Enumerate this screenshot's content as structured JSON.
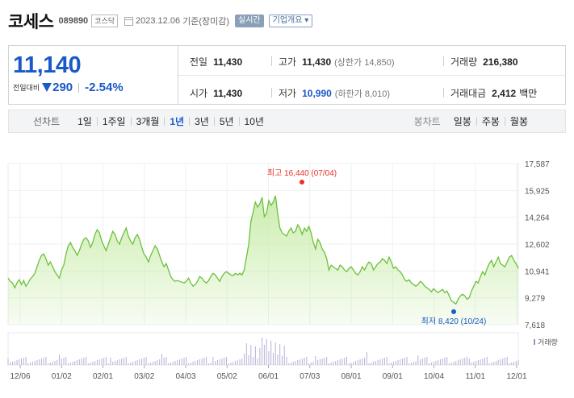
{
  "header": {
    "name": "코세스",
    "code": "089890",
    "market": "코스닥",
    "date": "2023.12.06",
    "basis": "기준(장미감)",
    "live_label": "실시간",
    "profile_label": "기업개요 ▾"
  },
  "price": {
    "current": "11,140",
    "change_label": "전일대비",
    "change": "290",
    "change_pct": "-2.54%",
    "direction": "down"
  },
  "stats": {
    "prev_close_label": "전일",
    "prev_close": "11,430",
    "high_label": "고가",
    "high": "11,430",
    "upper_limit": "(상한가 14,850)",
    "volume_label": "거래량",
    "volume": "216,380",
    "open_label": "시가",
    "open": "11,430",
    "low_label": "저가",
    "low": "10,990",
    "lower_limit": "(하한가 8,010)",
    "amount_label": "거래대금",
    "amount": "2,412",
    "amount_unit": "백만"
  },
  "tabs": {
    "line_title": "선차트",
    "periods": [
      "1일",
      "1주일",
      "3개월",
      "1년",
      "3년",
      "5년",
      "10년"
    ],
    "active_period": "1년",
    "candle_title": "봉차트",
    "candles": [
      "일봉",
      "주봉",
      "월봉"
    ]
  },
  "colors": {
    "accent": "#1a59c8",
    "up": "#e8302a",
    "line": "#6cc13a",
    "fill": "#c9ecaa"
  },
  "chart_data": {
    "type": "area",
    "x_tick_labels": [
      "12/06",
      "01/02",
      "02/01",
      "03/02",
      "04/03",
      "05/02",
      "06/01",
      "07/03",
      "08/01",
      "09/01",
      "10/04",
      "11/01",
      "12/01"
    ],
    "y_tick_labels": [
      "17,587",
      "15,925",
      "14,264",
      "12,602",
      "10,941",
      "9,279",
      "7,618"
    ],
    "ylim": [
      7618,
      17587
    ],
    "series": [
      {
        "values": [
          10500,
          10300,
          10200,
          9900,
          10200,
          10400,
          10100,
          10350,
          10000,
          10200,
          10450,
          10600,
          10800,
          11200,
          11600,
          11900,
          12000,
          11700,
          11300,
          11500,
          11200,
          10900,
          10700,
          10500,
          11000,
          11300,
          12000,
          12500,
          12700,
          12400,
          12200,
          11900,
          12200,
          12600,
          12900,
          13000,
          12800,
          12400,
          12700,
          13200,
          13500,
          13300,
          12800,
          12500,
          12200,
          12600,
          13000,
          13400,
          13200,
          12800,
          12600,
          13000,
          13300,
          13600,
          13100,
          12800,
          12600,
          13000,
          13200,
          12900,
          12400,
          12000,
          11800,
          11500,
          11900,
          12200,
          12500,
          12300,
          11900,
          11500,
          11200,
          11400,
          11000,
          10600,
          10400,
          10300,
          10350,
          10300,
          10250,
          10200,
          10300,
          10500,
          10200,
          10000,
          10100,
          10300,
          10600,
          10500,
          10300,
          10200,
          10350,
          10600,
          10800,
          10700,
          10500,
          10300,
          10600,
          10800,
          10900,
          10800,
          10700,
          10650,
          10800,
          10700,
          10800,
          10700,
          11000,
          11800,
          12600,
          14000,
          14600,
          15200,
          14900,
          15100,
          15500,
          14300,
          14500,
          15300,
          15000,
          15200,
          15600,
          14500,
          13600,
          13300,
          13200,
          13100,
          13400,
          13600,
          13300,
          13400,
          13800,
          13600,
          13200,
          13600,
          13400,
          13700,
          13300,
          12700,
          12300,
          12900,
          12700,
          12300,
          12100,
          11700,
          11000,
          11300,
          11200,
          11100,
          11000,
          11300,
          11200,
          11000,
          10900,
          11100,
          11200,
          11000,
          10800,
          10700,
          10900,
          11200,
          11000,
          11300,
          11500,
          11400,
          11000,
          11200,
          11400,
          11500,
          11700,
          11600,
          11400,
          11800,
          11500,
          11100,
          11200,
          11000,
          10900,
          10700,
          10400,
          10300,
          10400,
          10200,
          10100,
          10000,
          10100,
          10300,
          10200,
          10000,
          9900,
          9800,
          9650,
          9850,
          9700,
          9600,
          9700,
          9800,
          9600,
          9700,
          9400,
          9100,
          9000,
          8900,
          9200,
          9400,
          9500,
          9400,
          9200,
          9300,
          9700,
          10000,
          10300,
          10200,
          10600,
          10900,
          10700,
          11100,
          11400,
          11600,
          11200,
          11500,
          11800,
          11400,
          11300,
          11200,
          11500,
          11800,
          11900,
          11600,
          11400,
          11100
        ],
        "high_marker": {
          "label": "최고",
          "value": 16440,
          "date": "(07/04)",
          "text": "최고 16,440 (07/04)"
        },
        "low_marker": {
          "label": "최저",
          "value": 8420,
          "date": "(10/24)",
          "text": "최저 8,420 (10/24)"
        }
      }
    ],
    "volume_label": "거래량",
    "grid": true
  }
}
